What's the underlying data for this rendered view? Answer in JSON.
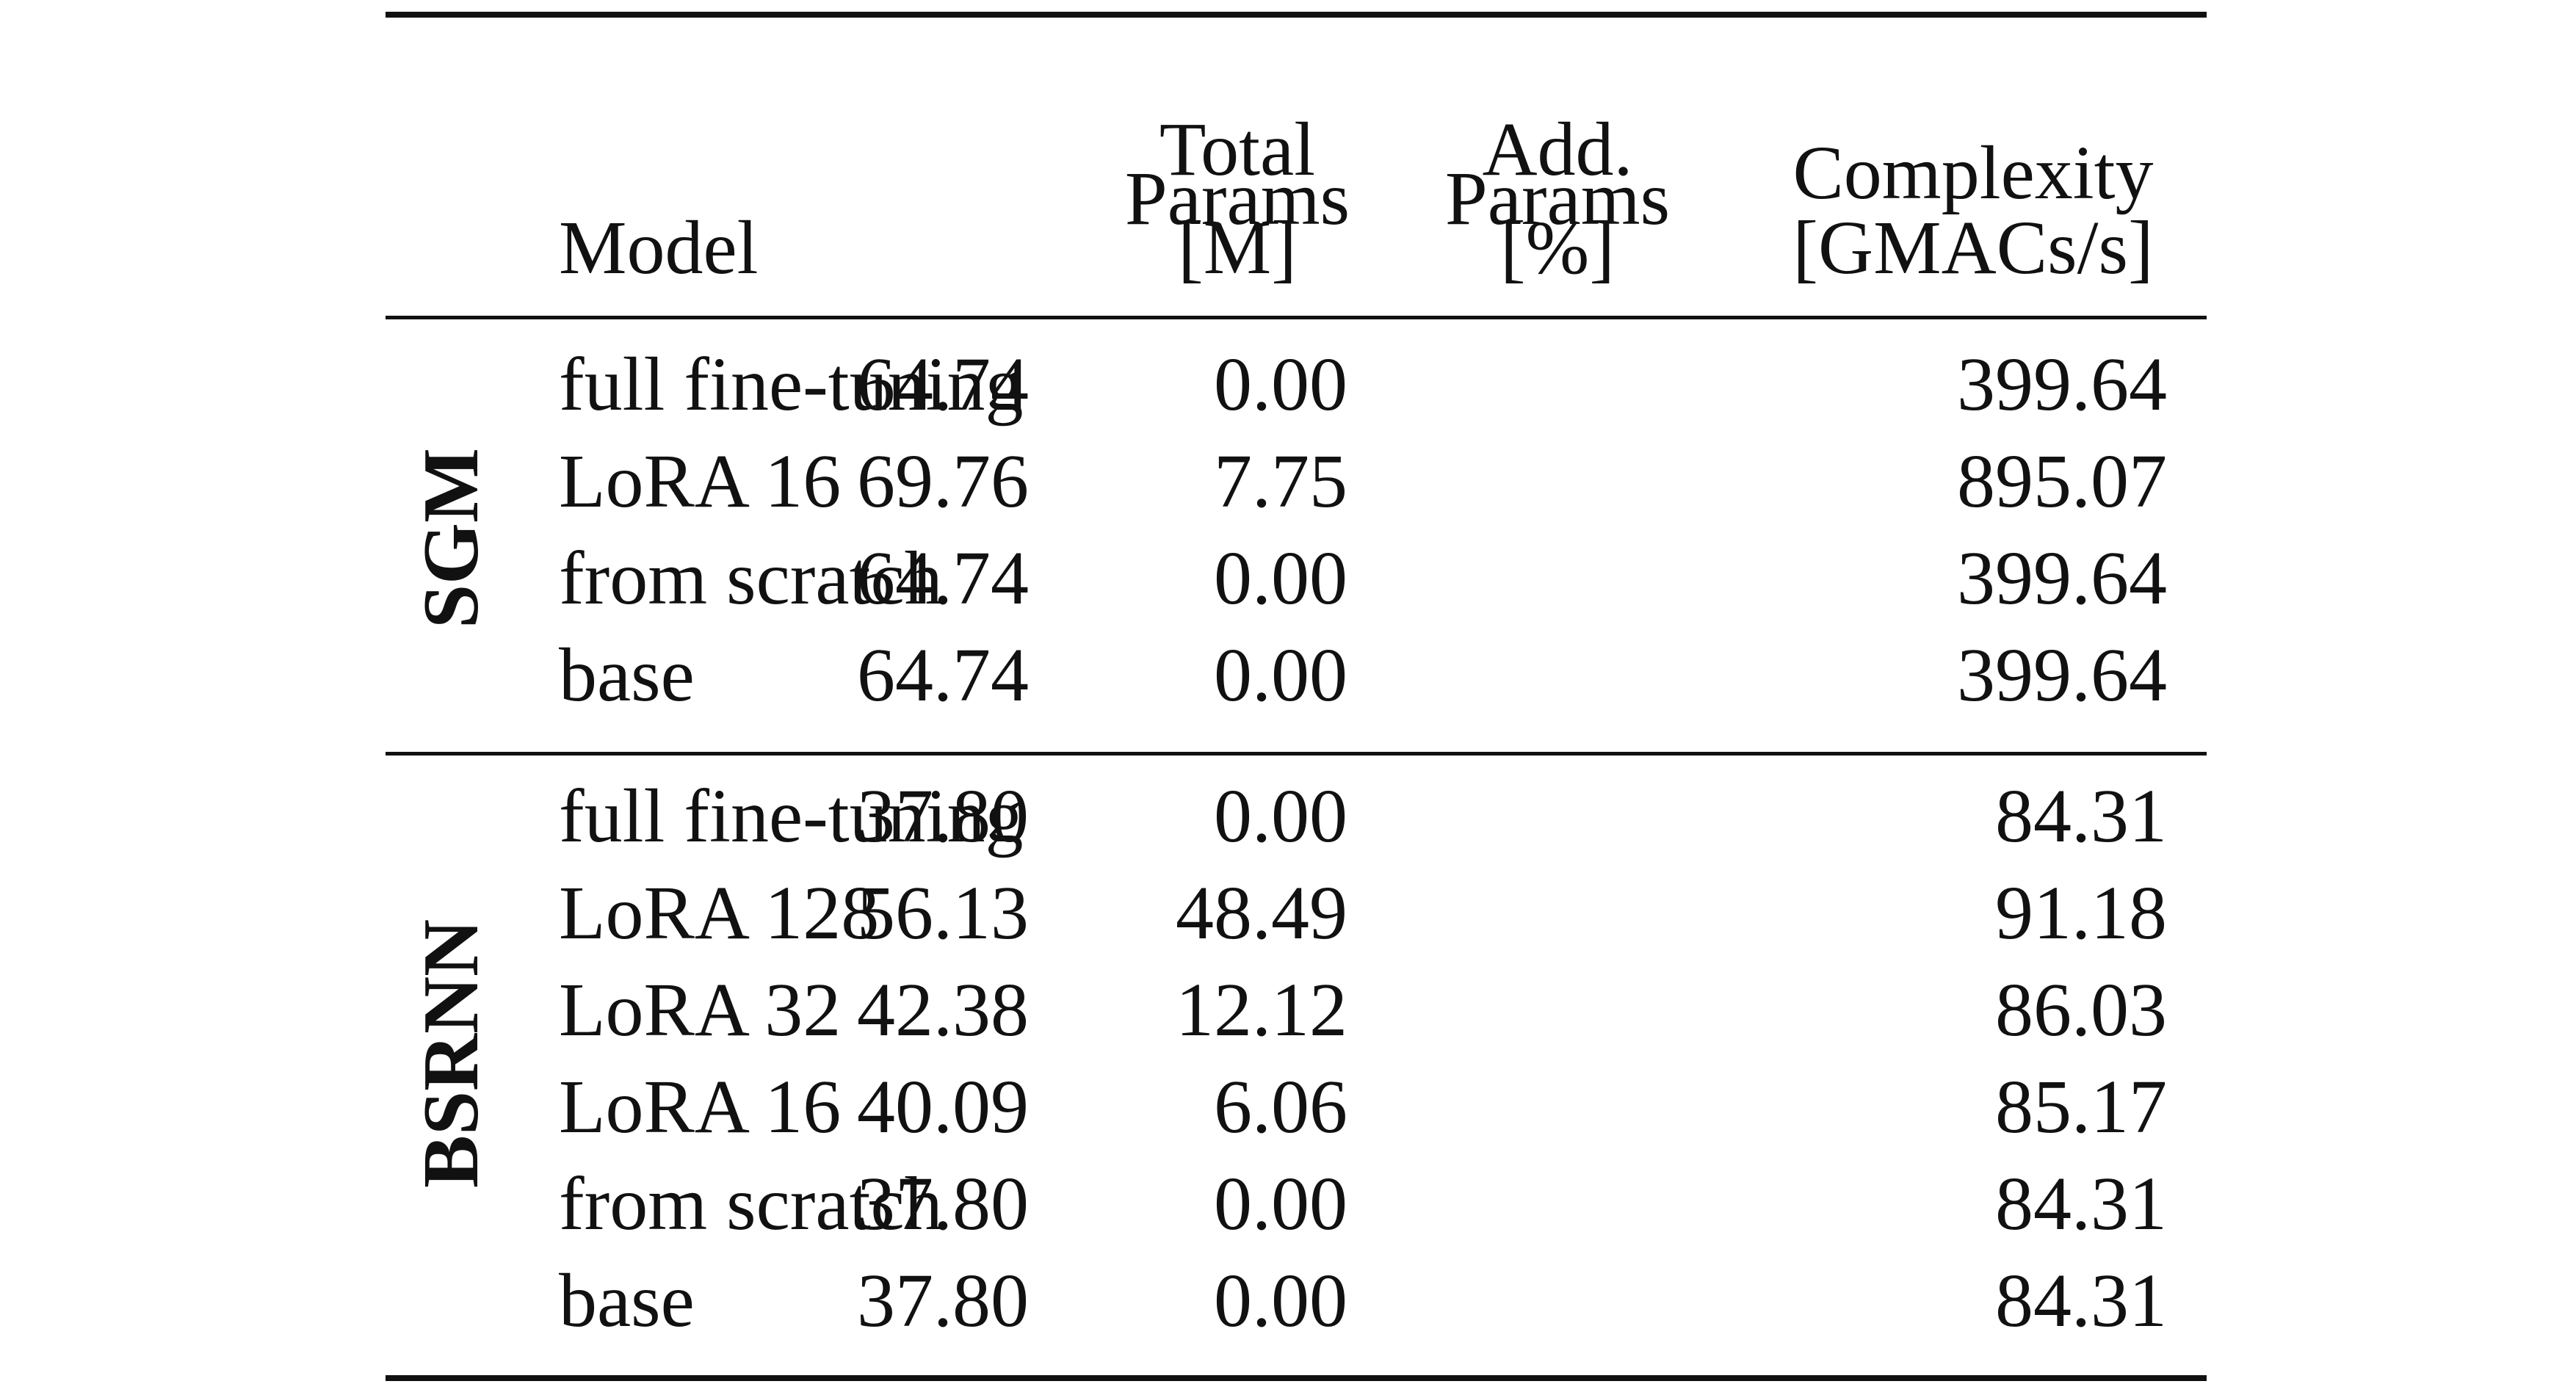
{
  "table": {
    "headers": {
      "model": "Model",
      "total_params": [
        "Total",
        "Params",
        "[M]"
      ],
      "add_params": [
        "Add.",
        "Params",
        "[%]"
      ],
      "complexity": [
        "Complexity",
        "[GMACs/s]"
      ]
    },
    "groups": [
      {
        "label": "SGM",
        "rows": [
          {
            "model": "full fine-tuning",
            "total": "64.74",
            "add": "0.00",
            "complexity": "399.64"
          },
          {
            "model": "LoRA 16",
            "total": "69.76",
            "add": "7.75",
            "complexity": "895.07"
          },
          {
            "model": "from scratch",
            "total": "64.74",
            "add": "0.00",
            "complexity": "399.64"
          },
          {
            "model": "base",
            "total": "64.74",
            "add": "0.00",
            "complexity": "399.64"
          }
        ]
      },
      {
        "label": "BSRNN",
        "rows": [
          {
            "model": "full fine-tuning",
            "total": "37.80",
            "add": "0.00",
            "complexity": "84.31"
          },
          {
            "model": "LoRA 128",
            "total": "56.13",
            "add": "48.49",
            "complexity": "91.18"
          },
          {
            "model": "LoRA 32",
            "total": "42.38",
            "add": "12.12",
            "complexity": "86.03"
          },
          {
            "model": "LoRA 16",
            "total": "40.09",
            "add": "6.06",
            "complexity": "85.17"
          },
          {
            "model": "from scratch",
            "total": "37.80",
            "add": "0.00",
            "complexity": "84.31"
          },
          {
            "model": "base",
            "total": "37.80",
            "add": "0.00",
            "complexity": "84.31"
          }
        ]
      }
    ]
  }
}
